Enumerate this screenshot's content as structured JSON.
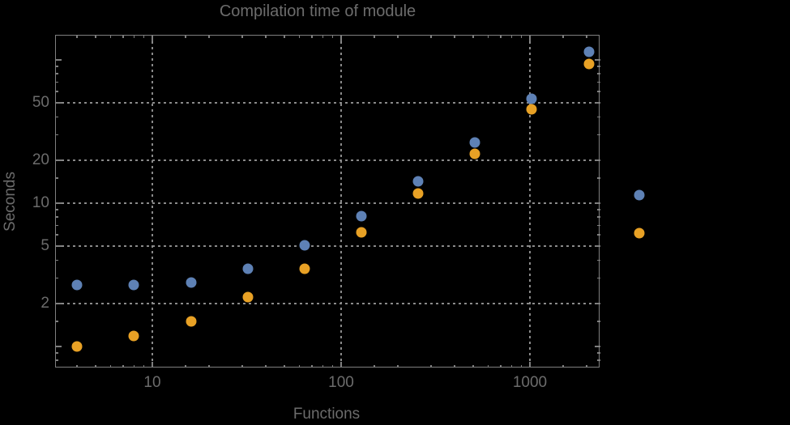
{
  "title": "Compilation time of module",
  "colors": {
    "background": "#000000",
    "text": "#6c6c6c",
    "frame": "#7f7f7f",
    "grid": "#8a8a8a",
    "series_blue": "#5e81b5",
    "series_orange": "#e8a125"
  },
  "chart_data": {
    "type": "scatter",
    "title": "Compilation time of module",
    "xlabel": "Functions",
    "ylabel": "Seconds",
    "x_scale": "log",
    "y_scale": "log",
    "xlim": [
      3,
      2320
    ],
    "ylim": [
      0.68,
      148
    ],
    "grid": "dotted",
    "legend_position": "right-outside",
    "x": [
      4,
      8,
      16,
      32,
      64,
      128,
      256,
      512,
      1024,
      2048
    ],
    "series": [
      {
        "name": "series-blue",
        "color": "#5e81b5",
        "values": [
          2.7,
          2.7,
          2.8,
          3.5,
          5.1,
          8.1,
          14.2,
          26.5,
          53.5,
          114
        ]
      },
      {
        "name": "series-orange",
        "color": "#e8a125",
        "values": [
          1.0,
          1.18,
          1.5,
          2.2,
          3.5,
          6.3,
          11.7,
          22,
          45,
          94
        ]
      }
    ],
    "x_axis": {
      "label": "Functions",
      "tick_labels": [
        10,
        100,
        1000
      ],
      "minor_ticks": [
        4,
        5,
        6,
        7,
        8,
        9,
        15,
        20,
        30,
        40,
        50,
        60,
        70,
        80,
        90,
        150,
        200,
        300,
        400,
        500,
        600,
        700,
        800,
        900,
        1500,
        2000
      ]
    },
    "y_axis": {
      "label": "Seconds",
      "tick_labels": [
        2,
        5,
        10,
        20,
        50
      ],
      "unlabeled_major_ticks": [
        1,
        100
      ],
      "minor_ticks": [
        0.8,
        0.9,
        1.5,
        3,
        4,
        6,
        7,
        8,
        9,
        15,
        30,
        40,
        60,
        70,
        80,
        90
      ]
    },
    "legend": {
      "items": [
        {
          "label": "",
          "color": "#5e81b5"
        },
        {
          "label": "",
          "color": "#e8a125"
        }
      ]
    }
  }
}
